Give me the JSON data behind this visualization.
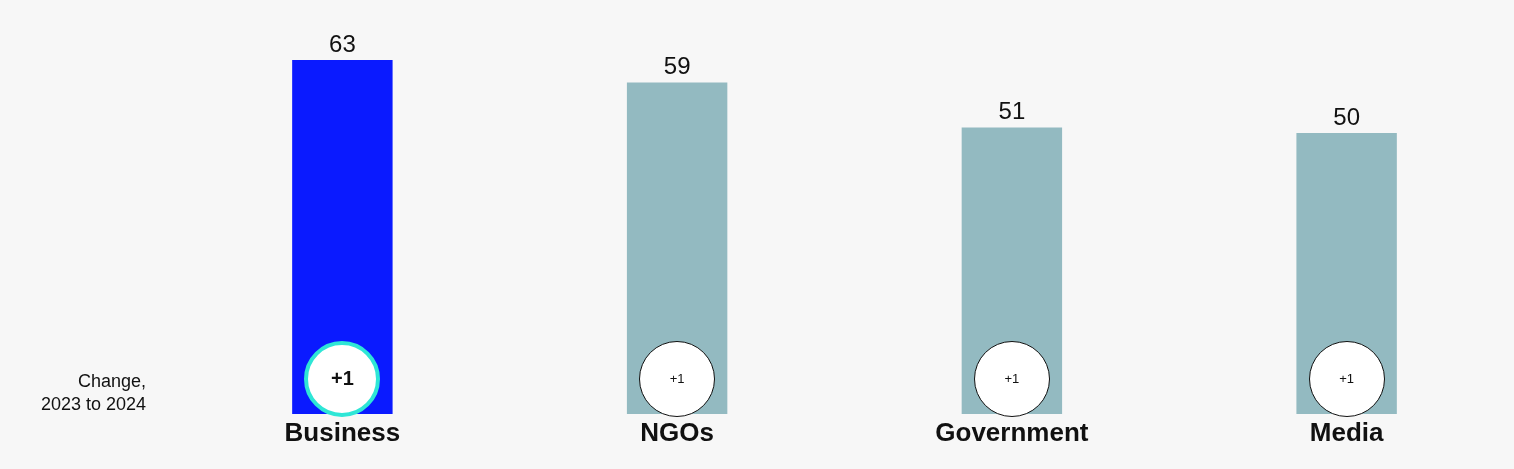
{
  "chart_data": {
    "type": "bar",
    "categories": [
      "Business",
      "NGOs",
      "Government",
      "Media"
    ],
    "values": [
      63,
      59,
      51,
      50
    ],
    "colors": [
      "#0a1aff",
      "#93bac1",
      "#93bac1",
      "#93bac1"
    ],
    "data_labels": true,
    "annotations": [
      "Change,\n2023 to 2024",
      "+1",
      "+1",
      "+1",
      "+1"
    ]
  }
}
